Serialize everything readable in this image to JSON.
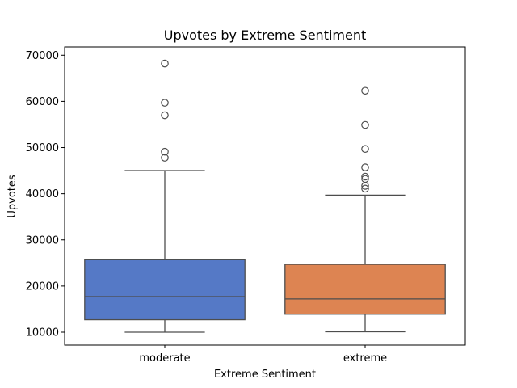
{
  "chart_data": {
    "type": "box",
    "title": "Upvotes by Extreme Sentiment",
    "xlabel": "Extreme Sentiment",
    "ylabel": "Upvotes",
    "ylim": [
      7200,
      71800
    ],
    "yticks": [
      10000,
      20000,
      30000,
      40000,
      50000,
      60000,
      70000
    ],
    "categories": [
      "moderate",
      "extreme"
    ],
    "boxes": [
      {
        "name": "moderate",
        "color": "#5579c6",
        "whisker_low": 10000,
        "q1": 12700,
        "median": 17700,
        "q3": 25700,
        "whisker_high": 45000,
        "outliers": [
          47800,
          49100,
          57000,
          59700,
          68200
        ]
      },
      {
        "name": "extreme",
        "color": "#dd8452",
        "whisker_low": 10100,
        "q1": 13900,
        "median": 17200,
        "q3": 24700,
        "whisker_high": 39700,
        "outliers": [
          41100,
          41700,
          43200,
          43700,
          45700,
          49700,
          54900,
          62300
        ]
      }
    ],
    "grid": false
  }
}
